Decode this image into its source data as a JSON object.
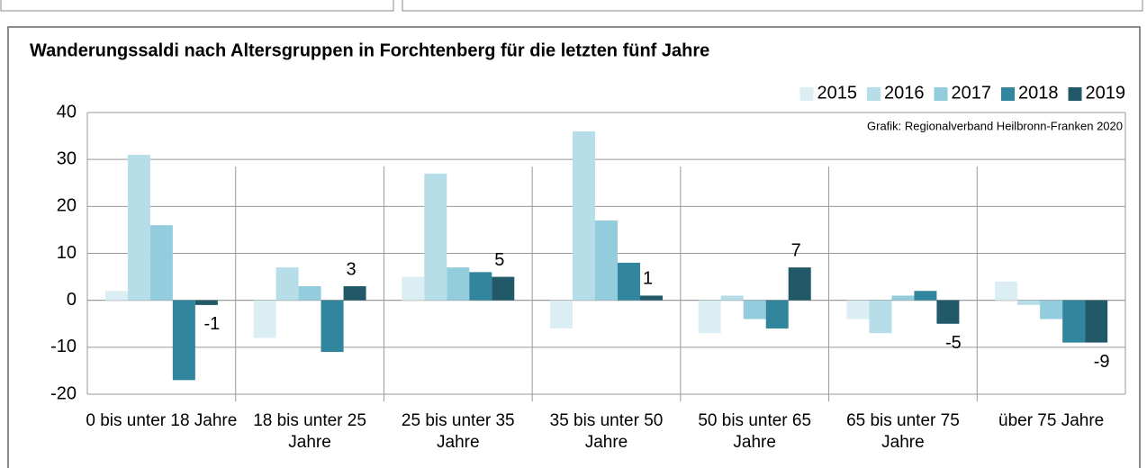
{
  "chart_data": {
    "type": "bar",
    "title": "Wanderungssaldi nach Altersgruppen in Forchtenberg für die letzten fünf Jahre",
    "annotation": "Grafik: Regionalverband Heilbronn-Franken 2020",
    "categories": [
      "0 bis unter 18 Jahre",
      "18 bis unter 25 Jahre",
      "25 bis unter 35 Jahre",
      "35 bis unter 50 Jahre",
      "50 bis unter 65 Jahre",
      "65 bis unter 75 Jahre",
      "über 75 Jahre"
    ],
    "series": [
      {
        "name": "2015",
        "color": "#dbeef4",
        "values": [
          2,
          -8,
          5,
          -6,
          -7,
          -4,
          4
        ]
      },
      {
        "name": "2016",
        "color": "#b7dde8",
        "values": [
          31,
          7,
          27,
          36,
          1,
          -7,
          -1
        ]
      },
      {
        "name": "2017",
        "color": "#93cddd",
        "values": [
          16,
          3,
          7,
          17,
          -4,
          1,
          -4
        ]
      },
      {
        "name": "2018",
        "color": "#31859c",
        "values": [
          -17,
          -11,
          6,
          8,
          -6,
          2,
          -9
        ]
      },
      {
        "name": "2019",
        "color": "#215968",
        "values": [
          -1,
          3,
          5,
          1,
          7,
          -5,
          -9
        ],
        "labeled": true
      }
    ],
    "ylim": [
      -20,
      40
    ],
    "yticks": [
      -20,
      -10,
      0,
      10,
      20,
      30,
      40
    ],
    "grid": true,
    "legend": "top-right"
  }
}
